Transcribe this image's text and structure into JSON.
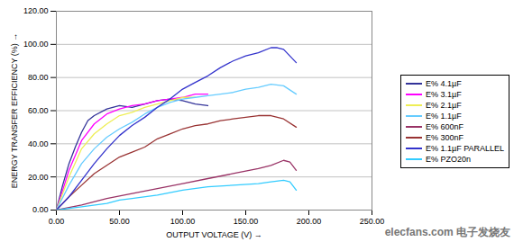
{
  "chart_data": {
    "type": "line",
    "x_label": "OUTPUT VOLTAGE (V)",
    "y_label": "ENERGY TRANSFER EFFICIENCY (%)",
    "xlim": [
      0,
      250
    ],
    "ylim": [
      0,
      120
    ],
    "xticks": [
      {
        "value": 0,
        "label": "0.00"
      },
      {
        "value": 50,
        "label": "50.00"
      },
      {
        "value": 100,
        "label": "100.00"
      },
      {
        "value": 150,
        "label": "150.00"
      },
      {
        "value": 200,
        "label": "200.00"
      },
      {
        "value": 250,
        "label": "250.00"
      }
    ],
    "yticks": [
      {
        "value": 0,
        "label": "0.00"
      },
      {
        "value": 20,
        "label": "20.00"
      },
      {
        "value": 40,
        "label": "40.00"
      },
      {
        "value": 60,
        "label": "60.00"
      },
      {
        "value": 80,
        "label": "80.00"
      },
      {
        "value": 100,
        "label": "100.00"
      },
      {
        "value": 120,
        "label": "120.00"
      }
    ],
    "grid": true,
    "legend": "right",
    "annotations": [
      "elecfans.com 电子发烧友"
    ],
    "series": [
      {
        "name": "E% 4.1µF",
        "color": "#333399",
        "x": [
          0,
          5,
          10,
          15,
          20,
          25,
          30,
          40,
          50,
          60,
          70,
          80,
          90,
          100,
          110,
          120
        ],
        "values": [
          0,
          15,
          28,
          38,
          47,
          54,
          57,
          61,
          63,
          62,
          64,
          66,
          67,
          66,
          64,
          63
        ]
      },
      {
        "name": "E% 3.1µF",
        "color": "#ff00ff",
        "x": [
          0,
          10,
          20,
          30,
          40,
          50,
          60,
          70,
          80,
          90,
          100,
          110,
          120
        ],
        "values": [
          0,
          24,
          42,
          52,
          58,
          61,
          63,
          64,
          66,
          67,
          68,
          70,
          70
        ]
      },
      {
        "name": "E% 2.1µF",
        "color": "#eeee55",
        "x": [
          0,
          10,
          20,
          30,
          40,
          50,
          60,
          70,
          80,
          90,
          100,
          110
        ],
        "values": [
          0,
          20,
          37,
          46,
          52,
          57,
          59,
          62,
          64,
          66,
          68,
          68
        ]
      },
      {
        "name": "E% 1.1µF",
        "color": "#66ccff",
        "x": [
          0,
          10,
          20,
          30,
          40,
          50,
          60,
          70,
          80,
          90,
          100,
          110,
          120,
          130,
          140,
          150,
          160,
          170,
          180,
          190
        ],
        "values": [
          0,
          15,
          28,
          37,
          44,
          49,
          53,
          58,
          62,
          65,
          67,
          68,
          69,
          70,
          71,
          73,
          74,
          76,
          75,
          70
        ]
      },
      {
        "name": "E% 600nF",
        "color": "#993366",
        "x": [
          0,
          20,
          40,
          60,
          80,
          100,
          120,
          140,
          160,
          170,
          180,
          185,
          190
        ],
        "values": [
          0,
          3,
          7,
          10,
          13,
          16,
          19,
          22,
          25,
          27,
          30,
          29,
          24
        ]
      },
      {
        "name": "E% 300nF",
        "color": "#993333",
        "x": [
          0,
          10,
          20,
          30,
          40,
          50,
          60,
          70,
          80,
          90,
          100,
          110,
          120,
          130,
          140,
          150,
          160,
          170,
          180,
          190
        ],
        "values": [
          0,
          8,
          15,
          22,
          27,
          32,
          35,
          38,
          43,
          46,
          49,
          51,
          52,
          54,
          55,
          56,
          57,
          57,
          55,
          50
        ]
      },
      {
        "name": "E% 1.1µF PARALLEL",
        "color": "#3333cc",
        "x": [
          0,
          10,
          20,
          30,
          40,
          50,
          60,
          70,
          80,
          90,
          100,
          110,
          120,
          130,
          140,
          150,
          160,
          170,
          175,
          180,
          190
        ],
        "values": [
          0,
          8,
          18,
          28,
          37,
          45,
          51,
          56,
          62,
          67,
          73,
          77,
          81,
          86,
          90,
          93,
          95,
          98,
          98,
          97,
          89
        ]
      },
      {
        "name": "E% PZO20n",
        "color": "#33ccff",
        "x": [
          0,
          20,
          40,
          50,
          60,
          80,
          100,
          120,
          140,
          160,
          170,
          180,
          185,
          190
        ],
        "values": [
          0,
          2,
          4,
          6,
          7,
          9,
          12,
          14,
          15,
          16,
          17,
          18,
          17,
          12
        ]
      }
    ]
  }
}
